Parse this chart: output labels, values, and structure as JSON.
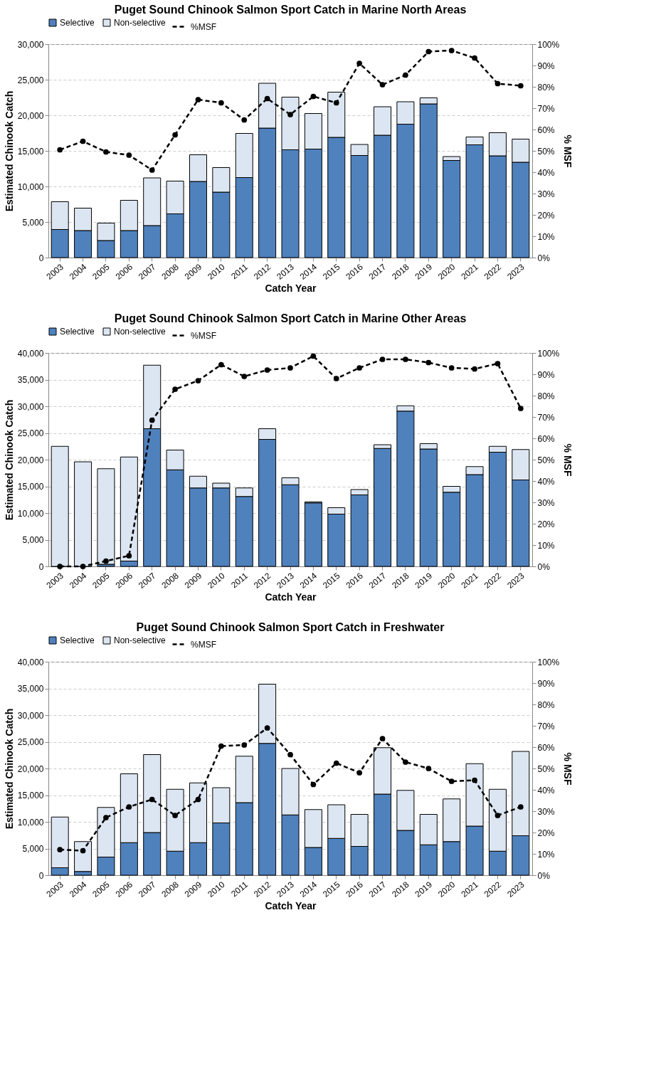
{
  "chart_data": [
    {
      "type": "bar",
      "stacked": true,
      "title": "Puget Sound Chinook Salmon Sport Catch in Marine North Areas",
      "xlabel": "Catch Year",
      "ylabel": "Estimated Chinook Catch",
      "y2label": "% MSF",
      "categories": [
        "2003",
        "2004",
        "2005",
        "2006",
        "2007",
        "2008",
        "2009",
        "2010",
        "2011",
        "2012",
        "2013",
        "2014",
        "2015",
        "2016",
        "2017",
        "2018",
        "2019",
        "2020",
        "2021",
        "2022",
        "2023"
      ],
      "series": [
        {
          "name": "Selective",
          "color": "#4f81bd",
          "values": [
            3950,
            3800,
            2400,
            3800,
            4500,
            6150,
            10700,
            9200,
            11250,
            18200,
            15150,
            15250,
            16900,
            14350,
            17200,
            18750,
            21600,
            13650,
            15850,
            14300,
            13400
          ]
        },
        {
          "name": "Non-selective",
          "color": "#dce6f2",
          "values": [
            3900,
            3150,
            2450,
            4250,
            6700,
            4600,
            3750,
            3450,
            6200,
            6300,
            7400,
            5000,
            6350,
            1550,
            4000,
            3150,
            850,
            550,
            1100,
            3250,
            3250
          ]
        },
        {
          "name": "%MSF",
          "type": "line",
          "axis": "y2",
          "color": "#000000",
          "values": [
            50.5,
            54.5,
            49.5,
            48,
            41,
            57.5,
            74,
            72.5,
            64.5,
            74.5,
            67,
            75.5,
            72.5,
            91,
            81,
            85.5,
            96.5,
            97,
            93.5,
            81.5,
            80.5
          ]
        }
      ],
      "ylim": [
        0,
        30000
      ],
      "yticks": [
        {
          "value": 0,
          "label": "0"
        },
        {
          "value": 5000,
          "label": "5,000"
        },
        {
          "value": 10000,
          "label": "10,000"
        },
        {
          "value": 15000,
          "label": "15,000"
        },
        {
          "value": 20000,
          "label": "20,000"
        },
        {
          "value": 25000,
          "label": "25,000"
        },
        {
          "value": 30000,
          "label": "30,000"
        }
      ],
      "y2lim": [
        0,
        100
      ],
      "y2ticks": [
        {
          "value": 0,
          "label": "0%"
        },
        {
          "value": 10,
          "label": "10%"
        },
        {
          "value": 20,
          "label": "20%"
        },
        {
          "value": 30,
          "label": "30%"
        },
        {
          "value": 40,
          "label": "40%"
        },
        {
          "value": 50,
          "label": "50%"
        },
        {
          "value": 60,
          "label": "60%"
        },
        {
          "value": 70,
          "label": "70%"
        },
        {
          "value": 80,
          "label": "80%"
        },
        {
          "value": 90,
          "label": "90%"
        },
        {
          "value": 100,
          "label": "100%"
        }
      ],
      "grid": "y",
      "legend": "top",
      "marker": "circle",
      "line_style": "dashed"
    },
    {
      "type": "bar",
      "stacked": true,
      "title": "Puget Sound Chinook Salmon Sport Catch in Marine Other Areas",
      "xlabel": "Catch Year",
      "ylabel": "Estimated Chinook Catch",
      "y2label": "% MSF",
      "categories": [
        "2003",
        "2004",
        "2005",
        "2006",
        "2007",
        "2008",
        "2009",
        "2010",
        "2011",
        "2012",
        "2013",
        "2014",
        "2015",
        "2016",
        "2017",
        "2018",
        "2019",
        "2020",
        "2021",
        "2022",
        "2023"
      ],
      "series": [
        {
          "name": "Selective",
          "color": "#4f81bd",
          "values": [
            0,
            0,
            400,
            1000,
            25800,
            18100,
            14700,
            14700,
            13100,
            23800,
            15300,
            11900,
            9800,
            13400,
            22100,
            29100,
            22000,
            13900,
            17200,
            21400,
            16200
          ]
        },
        {
          "name": "Non-selective",
          "color": "#dce6f2",
          "values": [
            22500,
            19600,
            17900,
            19500,
            11900,
            3700,
            2200,
            900,
            1600,
            2000,
            1300,
            200,
            1200,
            1000,
            700,
            1000,
            1000,
            1100,
            1500,
            1100,
            5700
          ]
        },
        {
          "name": "%MSF",
          "type": "line",
          "axis": "y2",
          "color": "#000000",
          "values": [
            0,
            0,
            2.5,
            5,
            68.5,
            83,
            87,
            94.5,
            89,
            92,
            93,
            98.5,
            88,
            93,
            97,
            97,
            95.5,
            93,
            92.5,
            95,
            74
          ]
        }
      ],
      "ylim": [
        0,
        40000
      ],
      "yticks": [
        {
          "value": 0,
          "label": "0"
        },
        {
          "value": 5000,
          "label": "5,000"
        },
        {
          "value": 10000,
          "label": "10,000"
        },
        {
          "value": 15000,
          "label": "15,000"
        },
        {
          "value": 20000,
          "label": "20,000"
        },
        {
          "value": 25000,
          "label": "25,000"
        },
        {
          "value": 30000,
          "label": "30,000"
        },
        {
          "value": 35000,
          "label": "35,000"
        },
        {
          "value": 40000,
          "label": "40,000"
        }
      ],
      "y2lim": [
        0,
        100
      ],
      "y2ticks": [
        {
          "value": 0,
          "label": "0%"
        },
        {
          "value": 10,
          "label": "10%"
        },
        {
          "value": 20,
          "label": "20%"
        },
        {
          "value": 30,
          "label": "30%"
        },
        {
          "value": 40,
          "label": "40%"
        },
        {
          "value": 50,
          "label": "50%"
        },
        {
          "value": 60,
          "label": "60%"
        },
        {
          "value": 70,
          "label": "70%"
        },
        {
          "value": 80,
          "label": "80%"
        },
        {
          "value": 90,
          "label": "90%"
        },
        {
          "value": 100,
          "label": "100%"
        }
      ],
      "grid": "y",
      "legend": "top",
      "marker": "circle",
      "line_style": "dashed"
    },
    {
      "type": "bar",
      "stacked": true,
      "title": "Puget Sound Chinook Salmon Sport Catch in Freshwater",
      "xlabel": "Catch Year",
      "ylabel": "Estimated Chinook Catch",
      "y2label": "% MSF",
      "categories": [
        "2003",
        "2004",
        "2005",
        "2006",
        "2007",
        "2008",
        "2009",
        "2010",
        "2011",
        "2012",
        "2013",
        "2014",
        "2015",
        "2016",
        "2017",
        "2018",
        "2019",
        "2020",
        "2021",
        "2022",
        "2023"
      ],
      "series": [
        {
          "name": "Selective",
          "color": "#4f81bd",
          "values": [
            1400,
            700,
            3400,
            6100,
            8000,
            4500,
            6100,
            9800,
            13600,
            24700,
            11300,
            5200,
            6900,
            5400,
            15200,
            8400,
            5700,
            6300,
            9200,
            4500,
            7400
          ]
        },
        {
          "name": "Non-selective",
          "color": "#dce6f2",
          "values": [
            9500,
            5600,
            9300,
            12900,
            14600,
            11600,
            11200,
            6600,
            8700,
            11100,
            8700,
            7100,
            6300,
            6000,
            8700,
            7500,
            5700,
            8000,
            11700,
            11600,
            15800
          ]
        },
        {
          "name": "%MSF",
          "type": "line",
          "axis": "y2",
          "color": "#000000",
          "values": [
            12,
            11.5,
            27,
            32,
            35.5,
            28,
            35.5,
            60.5,
            61,
            69,
            56.5,
            42.5,
            52.5,
            48,
            64,
            53,
            50,
            44,
            44.5,
            28,
            32
          ]
        }
      ],
      "ylim": [
        0,
        40000
      ],
      "yticks": [
        {
          "value": 0,
          "label": "0"
        },
        {
          "value": 5000,
          "label": "5,000"
        },
        {
          "value": 10000,
          "label": "10,000"
        },
        {
          "value": 15000,
          "label": "15,000"
        },
        {
          "value": 20000,
          "label": "20,000"
        },
        {
          "value": 25000,
          "label": "25,000"
        },
        {
          "value": 30000,
          "label": "30,000"
        },
        {
          "value": 35000,
          "label": "35,000"
        },
        {
          "value": 40000,
          "label": "40,000"
        }
      ],
      "y2lim": [
        0,
        100
      ],
      "y2ticks": [
        {
          "value": 0,
          "label": "0%"
        },
        {
          "value": 10,
          "label": "10%"
        },
        {
          "value": 20,
          "label": "20%"
        },
        {
          "value": 30,
          "label": "30%"
        },
        {
          "value": 40,
          "label": "40%"
        },
        {
          "value": 50,
          "label": "50%"
        },
        {
          "value": 60,
          "label": "60%"
        },
        {
          "value": 70,
          "label": "70%"
        },
        {
          "value": 80,
          "label": "80%"
        },
        {
          "value": 90,
          "label": "90%"
        },
        {
          "value": 100,
          "label": "100%"
        }
      ],
      "grid": "y",
      "legend": "top",
      "marker": "circle",
      "line_style": "dashed"
    }
  ]
}
